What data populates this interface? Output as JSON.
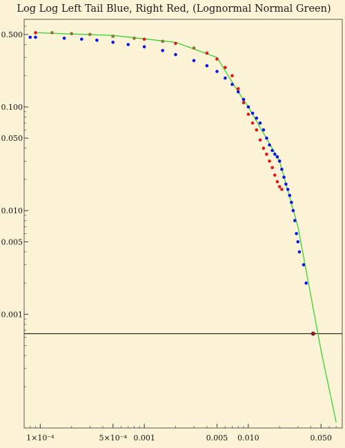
{
  "chart_data": {
    "type": "scatter",
    "title": "Log Log Left Tail Blue, Right Red, (Lognormal Normal Green)",
    "xlabel": "",
    "ylabel": "",
    "x_scale": "log",
    "y_scale": "log",
    "xlim": [
      7e-05,
      0.08
    ],
    "ylim": [
      8e-05,
      0.7
    ],
    "grid": false,
    "legend": "none",
    "x_ticks": [
      {
        "value": 0.0001,
        "label": "1×10⁻⁴"
      },
      {
        "value": 0.0005,
        "label": "5×10⁻⁴"
      },
      {
        "value": 0.001,
        "label": "0.001"
      },
      {
        "value": 0.005,
        "label": "0.005"
      },
      {
        "value": 0.01,
        "label": "0.010"
      },
      {
        "value": 0.05,
        "label": "0.050"
      }
    ],
    "y_ticks": [
      {
        "value": 0.5,
        "label": "0.500"
      },
      {
        "value": 0.1,
        "label": "0.100"
      },
      {
        "value": 0.05,
        "label": "0.050"
      },
      {
        "value": 0.01,
        "label": "0.010"
      },
      {
        "value": 0.005,
        "label": "0.005"
      },
      {
        "value": 0.001,
        "label": "0.001"
      }
    ],
    "hline": {
      "y": 0.00065,
      "color": "#000000"
    },
    "marker": {
      "x": 0.042,
      "y": 0.00065,
      "color": "#8b1a1a"
    },
    "series": [
      {
        "color": "#0a14e6",
        "points": [
          [
            8e-05,
            0.47
          ],
          [
            9e-05,
            0.47
          ],
          [
            0.00017,
            0.46
          ],
          [
            0.00025,
            0.45
          ],
          [
            0.00035,
            0.44
          ],
          [
            0.0005,
            0.42
          ],
          [
            0.0007,
            0.4
          ],
          [
            0.001,
            0.38
          ],
          [
            0.0015,
            0.35
          ],
          [
            0.002,
            0.32
          ],
          [
            0.003,
            0.28
          ],
          [
            0.004,
            0.25
          ],
          [
            0.005,
            0.22
          ],
          [
            0.006,
            0.19
          ],
          [
            0.007,
            0.165
          ],
          [
            0.008,
            0.14
          ],
          [
            0.009,
            0.118
          ],
          [
            0.01,
            0.1
          ],
          [
            0.011,
            0.087
          ],
          [
            0.012,
            0.078
          ],
          [
            0.013,
            0.07
          ],
          [
            0.014,
            0.06
          ],
          [
            0.015,
            0.05
          ],
          [
            0.016,
            0.043
          ],
          [
            0.017,
            0.038
          ],
          [
            0.018,
            0.035
          ],
          [
            0.019,
            0.033
          ],
          [
            0.02,
            0.03
          ],
          [
            0.021,
            0.025
          ],
          [
            0.022,
            0.021
          ],
          [
            0.023,
            0.018
          ],
          [
            0.024,
            0.016
          ],
          [
            0.025,
            0.014
          ],
          [
            0.026,
            0.012
          ],
          [
            0.027,
            0.01
          ],
          [
            0.028,
            0.008
          ],
          [
            0.029,
            0.006
          ],
          [
            0.03,
            0.005
          ],
          [
            0.031,
            0.004
          ],
          [
            0.034,
            0.003
          ],
          [
            0.036,
            0.002
          ]
        ]
      },
      {
        "color": "#e61414",
        "points": [
          [
            9e-05,
            0.52
          ],
          [
            0.00013,
            0.52
          ],
          [
            0.0002,
            0.51
          ],
          [
            0.0003,
            0.5
          ],
          [
            0.0005,
            0.48
          ],
          [
            0.0008,
            0.46
          ],
          [
            0.001,
            0.45
          ],
          [
            0.0015,
            0.43
          ],
          [
            0.002,
            0.41
          ],
          [
            0.003,
            0.37
          ],
          [
            0.004,
            0.33
          ],
          [
            0.005,
            0.29
          ],
          [
            0.006,
            0.24
          ],
          [
            0.007,
            0.2
          ],
          [
            0.008,
            0.15
          ],
          [
            0.009,
            0.11
          ],
          [
            0.01,
            0.085
          ],
          [
            0.011,
            0.07
          ],
          [
            0.012,
            0.06
          ],
          [
            0.013,
            0.048
          ],
          [
            0.014,
            0.04
          ],
          [
            0.015,
            0.035
          ],
          [
            0.016,
            0.03
          ],
          [
            0.017,
            0.026
          ],
          [
            0.018,
            0.022
          ],
          [
            0.019,
            0.019
          ],
          [
            0.02,
            0.017
          ],
          [
            0.021,
            0.016
          ]
        ]
      },
      {
        "color": "#8a7a3a",
        "points": [
          [
            0.00013,
            0.52
          ],
          [
            0.0002,
            0.51
          ],
          [
            0.0003,
            0.5
          ],
          [
            0.0005,
            0.48
          ],
          [
            0.0008,
            0.46
          ],
          [
            0.0015,
            0.43
          ],
          [
            0.003,
            0.37
          ]
        ]
      }
    ],
    "lines": [
      {
        "color": "#33d633",
        "points": [
          [
            9e-05,
            0.52
          ],
          [
            0.0005,
            0.49
          ],
          [
            0.002,
            0.42
          ],
          [
            0.005,
            0.3
          ],
          [
            0.008,
            0.14
          ],
          [
            0.01,
            0.1
          ],
          [
            0.02,
            0.03
          ],
          [
            0.03,
            0.007
          ],
          [
            0.04,
            0.0015
          ],
          [
            0.05,
            0.00045
          ],
          [
            0.07,
            9e-05
          ]
        ]
      }
    ]
  }
}
